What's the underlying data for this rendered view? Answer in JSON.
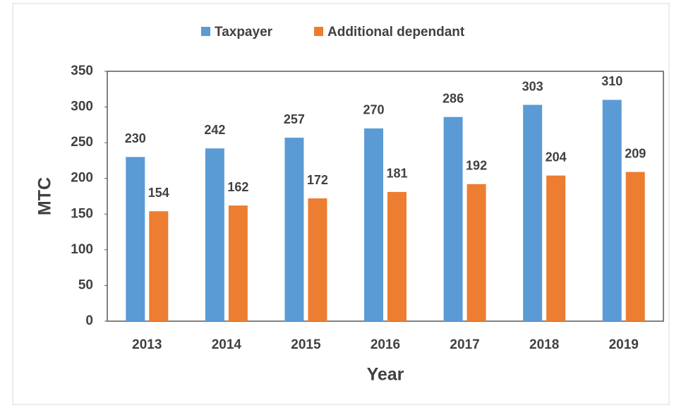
{
  "chart_data": {
    "type": "bar",
    "categories": [
      "2013",
      "2014",
      "2015",
      "2016",
      "2017",
      "2018",
      "2019"
    ],
    "series": [
      {
        "name": "Taxpayer",
        "color": "#5b9bd5",
        "values": [
          230,
          242,
          257,
          270,
          286,
          303,
          310
        ]
      },
      {
        "name": "Additional dependant",
        "color": "#ed7d31",
        "values": [
          154,
          162,
          172,
          181,
          192,
          204,
          209
        ]
      }
    ],
    "x_label": "Year",
    "y_label": "MTC",
    "ylim": [
      0,
      350
    ],
    "yticks": [
      0,
      50,
      100,
      150,
      200,
      250,
      300,
      350
    ],
    "legend": "top",
    "grid": false
  }
}
